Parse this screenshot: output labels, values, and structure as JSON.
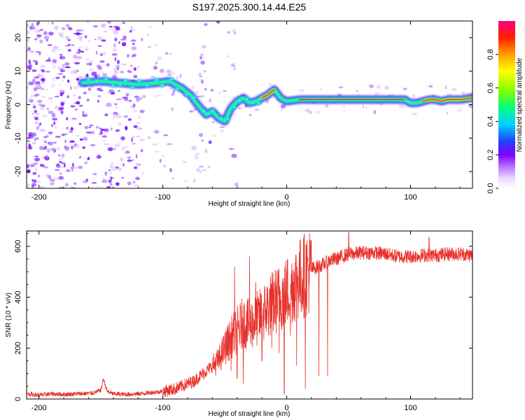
{
  "title": "S197.2025.300.14.44.E25",
  "colors": {
    "snr_line": "#e8302a",
    "frame": "#000000",
    "colormap": [
      "#ffffff",
      "#e8d8ff",
      "#c080ff",
      "#8000ff",
      "#2040ff",
      "#00d0ff",
      "#00ff80",
      "#80ff00",
      "#ffff00",
      "#ffa000",
      "#ff2000",
      "#ff0080"
    ]
  },
  "chart_data": [
    {
      "type": "heatmap",
      "name": "spectrogram",
      "xlabel": "Height of straight line (km)",
      "ylabel": "Frequency (Hz)",
      "xlim": [
        -210,
        150
      ],
      "ylim": [
        -25,
        25
      ],
      "xticks": [
        -200,
        -100,
        0,
        100
      ],
      "xtick_labels": [
        "-200",
        "-100",
        "0",
        "100"
      ],
      "yticks": [
        -20,
        -10,
        0,
        10,
        20
      ],
      "ytick_labels": [
        "-20",
        "-10",
        "0",
        "10",
        "20"
      ],
      "ridge_x": [
        -165,
        -150,
        -135,
        -120,
        -105,
        -95,
        -85,
        -78,
        -72,
        -65,
        -60,
        -55,
        -50,
        -45,
        -40,
        -35,
        -30,
        -25,
        -20,
        -15,
        -10,
        -5,
        0,
        10,
        20,
        40,
        60,
        80,
        95,
        100,
        105,
        110,
        115,
        120,
        125,
        130,
        140,
        150
      ],
      "ridge_y": [
        6.5,
        7,
        6.5,
        6,
        6.5,
        7,
        5,
        3,
        0,
        -3,
        -2,
        -4,
        -5,
        -1,
        1,
        2,
        0.5,
        1,
        2,
        3,
        4.5,
        2,
        1,
        1.5,
        1.5,
        1.5,
        1.5,
        1.5,
        1.5,
        0.5,
        0.5,
        1,
        1.5,
        1.5,
        1,
        1.5,
        1.5,
        2
      ]
    },
    {
      "type": "colorbar",
      "name": "amplitude-scale",
      "label": "Normalized spectral amplitude",
      "lim": [
        0,
        1
      ],
      "ticks": [
        0.0,
        0.2,
        0.4,
        0.6,
        0.8
      ],
      "tick_labels": [
        "0.0",
        "0.2",
        "0.4",
        "0.6",
        "0.8"
      ]
    },
    {
      "type": "line",
      "name": "snr",
      "xlabel": "Height of straight line (km)",
      "ylabel": "SNR (10 * v/v)",
      "xlim": [
        -210,
        150
      ],
      "ylim": [
        0,
        660
      ],
      "xticks": [
        -200,
        -100,
        0,
        100
      ],
      "xtick_labels": [
        "-200",
        "-100",
        "0",
        "100"
      ],
      "yticks": [
        0,
        200,
        400,
        600
      ],
      "ytick_labels": [
        "0",
        "200",
        "400",
        "600"
      ],
      "series": [
        {
          "name": "SNR",
          "x": [
            -210,
            -200,
            -190,
            -180,
            -170,
            -160,
            -155,
            -150,
            -148,
            -145,
            -140,
            -130,
            -120,
            -110,
            -100,
            -95,
            -90,
            -85,
            -80,
            -75,
            -70,
            -65,
            -60,
            -55,
            -50,
            -45,
            -40,
            -35,
            -30,
            -25,
            -20,
            -15,
            -10,
            -5,
            0,
            5,
            10,
            15,
            20,
            25,
            30,
            35,
            40,
            45,
            50,
            55,
            60,
            70,
            80,
            90,
            100,
            110,
            120,
            130,
            140,
            150
          ],
          "y": [
            20,
            15,
            20,
            18,
            20,
            22,
            25,
            35,
            80,
            30,
            20,
            18,
            20,
            25,
            30,
            35,
            40,
            50,
            60,
            70,
            90,
            110,
            130,
            150,
            200,
            240,
            270,
            300,
            290,
            310,
            330,
            360,
            380,
            400,
            420,
            450,
            470,
            490,
            510,
            520,
            530,
            545,
            550,
            560,
            570,
            570,
            575,
            575,
            570,
            560,
            560,
            565,
            565,
            570,
            570,
            565
          ]
        }
      ],
      "drops": [
        {
          "x": -45,
          "y": 110
        },
        {
          "x": -40,
          "y": 80
        },
        {
          "x": -35,
          "y": 60
        },
        {
          "x": -30,
          "y": 100
        },
        {
          "x": -25,
          "y": 70
        },
        {
          "x": -20,
          "y": 150
        },
        {
          "x": -12,
          "y": 200
        },
        {
          "x": -6,
          "y": 180
        },
        {
          "x": -2,
          "y": 20
        },
        {
          "x": 3,
          "y": 250
        },
        {
          "x": 8,
          "y": 130
        },
        {
          "x": 15,
          "y": 40
        },
        {
          "x": 26,
          "y": 90
        },
        {
          "x": 33,
          "y": 90
        }
      ],
      "spikes": [
        {
          "x": -30,
          "y": 560
        },
        {
          "x": -42,
          "y": 520
        },
        {
          "x": -25,
          "y": 460
        },
        {
          "x": 50,
          "y": 655
        },
        {
          "x": 115,
          "y": 635
        }
      ]
    }
  ]
}
